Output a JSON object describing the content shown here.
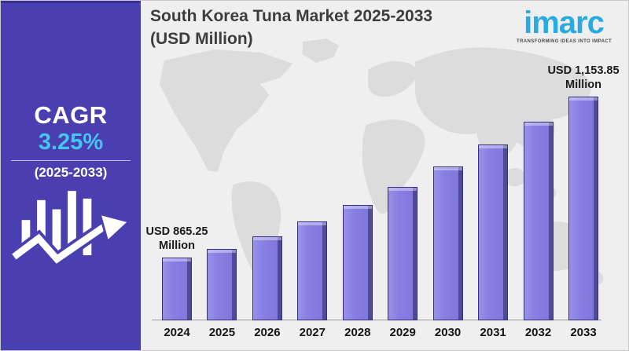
{
  "sidebar": {
    "cagr_label": "CAGR",
    "cagr_value": "3.25%",
    "cagr_period": "(2025-2033)",
    "colors": {
      "background": "#4A3FB0",
      "accent": "#44C6F2",
      "text": "#FFFFFF"
    }
  },
  "header": {
    "title_line1": "South Korea Tuna Market 2025-2033",
    "title_line2": "(USD Million)"
  },
  "logo": {
    "name": "imarc",
    "tagline": "TRANSFORMING IDEAS INTO IMPACT",
    "color": "#29ABE2"
  },
  "chart_data": {
    "type": "bar",
    "title": "South Korea Tuna Market 2025-2033 (USD Million)",
    "unit": "USD Million",
    "categories": [
      "2024",
      "2025",
      "2026",
      "2027",
      "2028",
      "2029",
      "2030",
      "2031",
      "2032",
      "2033"
    ],
    "values": [
      865.25,
      893.37,
      922.41,
      952.39,
      983.34,
      1015.3,
      1048.29,
      1082.36,
      1117.54,
      1153.85
    ],
    "cagr": "3.25%",
    "cagr_period": "2025-2033",
    "data_labels": [
      {
        "category": "2024",
        "text": "USD 865.25\nMillion"
      },
      {
        "category": "2033",
        "text": "USD 1,153.85\nMillion"
      }
    ],
    "bar_color": "#867EE0",
    "bar_edge_color": "#36307A",
    "background": "#EFEFEF",
    "map_color": "#DCDCDC",
    "gridlines": false,
    "legend": false
  }
}
